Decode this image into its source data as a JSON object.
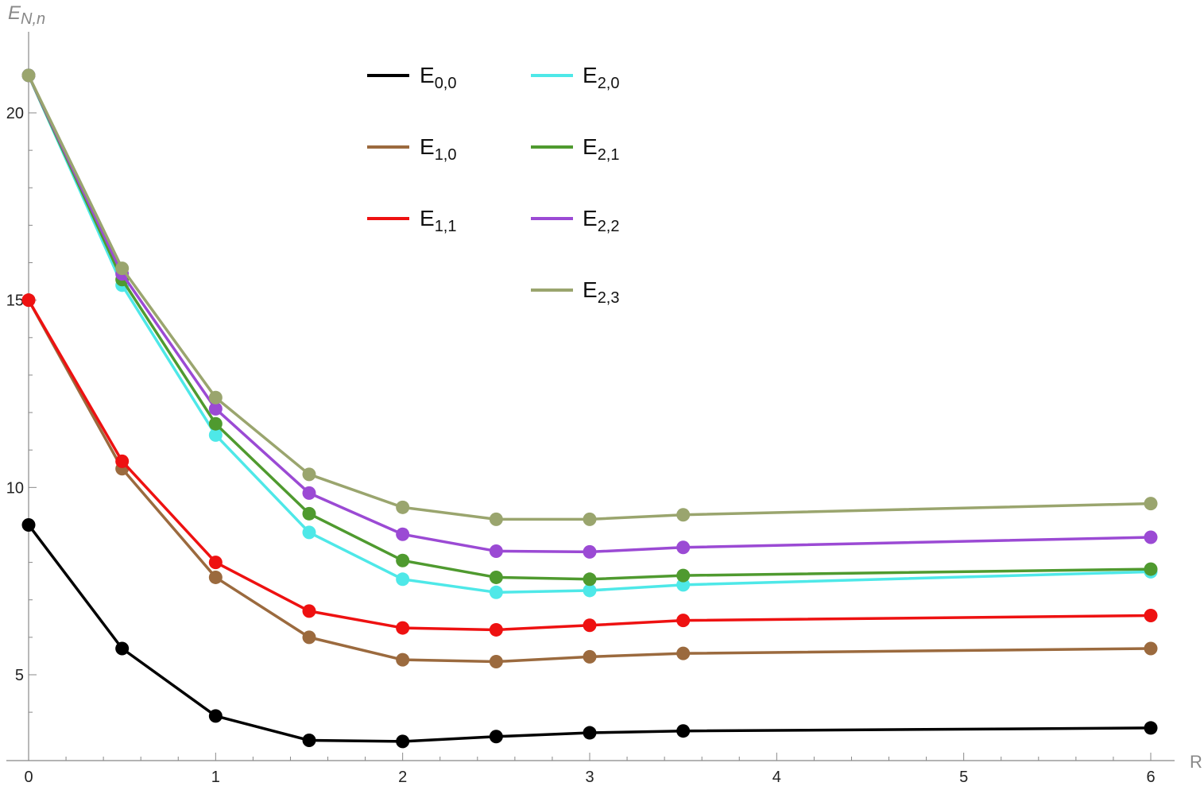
{
  "chart_data": {
    "type": "line",
    "title": "",
    "xlabel": "R",
    "ylabel": "E_{N,n}",
    "ylabel_main": "E",
    "ylabel_sub": "N,n",
    "xlim": [
      0,
      6.15
    ],
    "ylim": [
      3.2,
      21.8
    ],
    "x_ticks": [
      0,
      1,
      2,
      3,
      4,
      5,
      6
    ],
    "x_tick_labels": [
      "0",
      "1",
      "2",
      "3",
      "4",
      "5",
      "6"
    ],
    "y_ticks": [
      5,
      10,
      15,
      20
    ],
    "y_tick_labels": [
      "5",
      "10",
      "15",
      "20"
    ],
    "x": [
      0,
      0.5,
      1,
      1.5,
      2,
      2.5,
      3,
      3.5,
      6
    ],
    "legend_position": "top-center",
    "series": [
      {
        "name": "E_{0,0}",
        "label_main": "E",
        "label_sub": "0,0",
        "color": "#000000",
        "values": [
          9.0,
          5.7,
          3.9,
          3.25,
          3.22,
          3.35,
          3.45,
          3.5,
          3.58
        ]
      },
      {
        "name": "E_{1,0}",
        "label_main": "E",
        "label_sub": "1,0",
        "color": "#9b6a3e",
        "values": [
          15.0,
          10.5,
          7.6,
          6.0,
          5.4,
          5.35,
          5.48,
          5.57,
          5.7
        ]
      },
      {
        "name": "E_{1,1}",
        "label_main": "E",
        "label_sub": "1,1",
        "color": "#ee1111",
        "values": [
          15.0,
          10.7,
          8.0,
          6.7,
          6.25,
          6.2,
          6.32,
          6.45,
          6.58
        ]
      },
      {
        "name": "E_{2,0}",
        "label_main": "E",
        "label_sub": "2,0",
        "color": "#4ee8e8",
        "values": [
          21.0,
          15.4,
          11.4,
          8.8,
          7.55,
          7.2,
          7.25,
          7.4,
          7.75
        ]
      },
      {
        "name": "E_{2,1}",
        "label_main": "E",
        "label_sub": "2,1",
        "color": "#4f9a2f",
        "values": [
          21.0,
          15.55,
          11.7,
          9.3,
          8.05,
          7.6,
          7.55,
          7.65,
          7.82
        ]
      },
      {
        "name": "E_{2,2}",
        "label_main": "E",
        "label_sub": "2,2",
        "color": "#9b4ad4",
        "values": [
          21.0,
          15.7,
          12.1,
          9.85,
          8.75,
          8.3,
          8.28,
          8.4,
          8.67
        ]
      },
      {
        "name": "E_{2,3}",
        "label_main": "E",
        "label_sub": "2,3",
        "color": "#9aa56e",
        "values": [
          21.0,
          15.85,
          12.4,
          10.35,
          9.47,
          9.15,
          9.15,
          9.27,
          9.57
        ]
      }
    ]
  }
}
